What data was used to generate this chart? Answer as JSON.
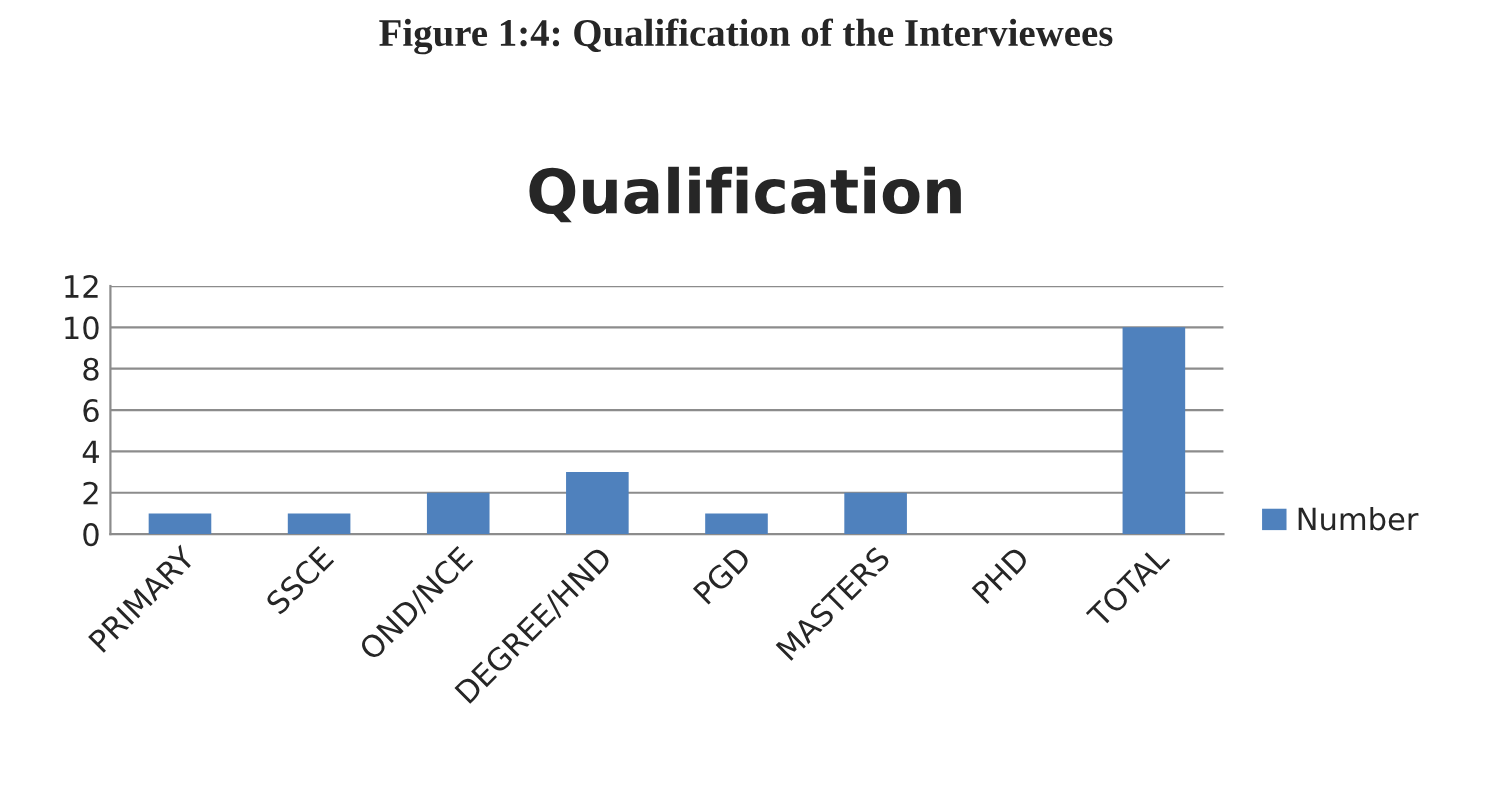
{
  "chart_data": {
    "type": "bar",
    "title": "Qualification",
    "annotations": [
      "Figure 1:4: Qualification of the Interviewees"
    ],
    "categories": [
      "PRIMARY",
      "SSCE",
      "OND/NCE",
      "DEGREE/HND",
      "PGD",
      "MASTERS",
      "PHD",
      "TOTAL"
    ],
    "series": [
      {
        "name": "Number",
        "color": "#4f81bd",
        "values": [
          1,
          1,
          2,
          3,
          1,
          2,
          0,
          10
        ]
      }
    ],
    "ylim": [
      0,
      12
    ],
    "yticks": [
      0,
      2,
      4,
      6,
      8,
      10,
      12
    ],
    "grid": "y",
    "legend": "right"
  }
}
